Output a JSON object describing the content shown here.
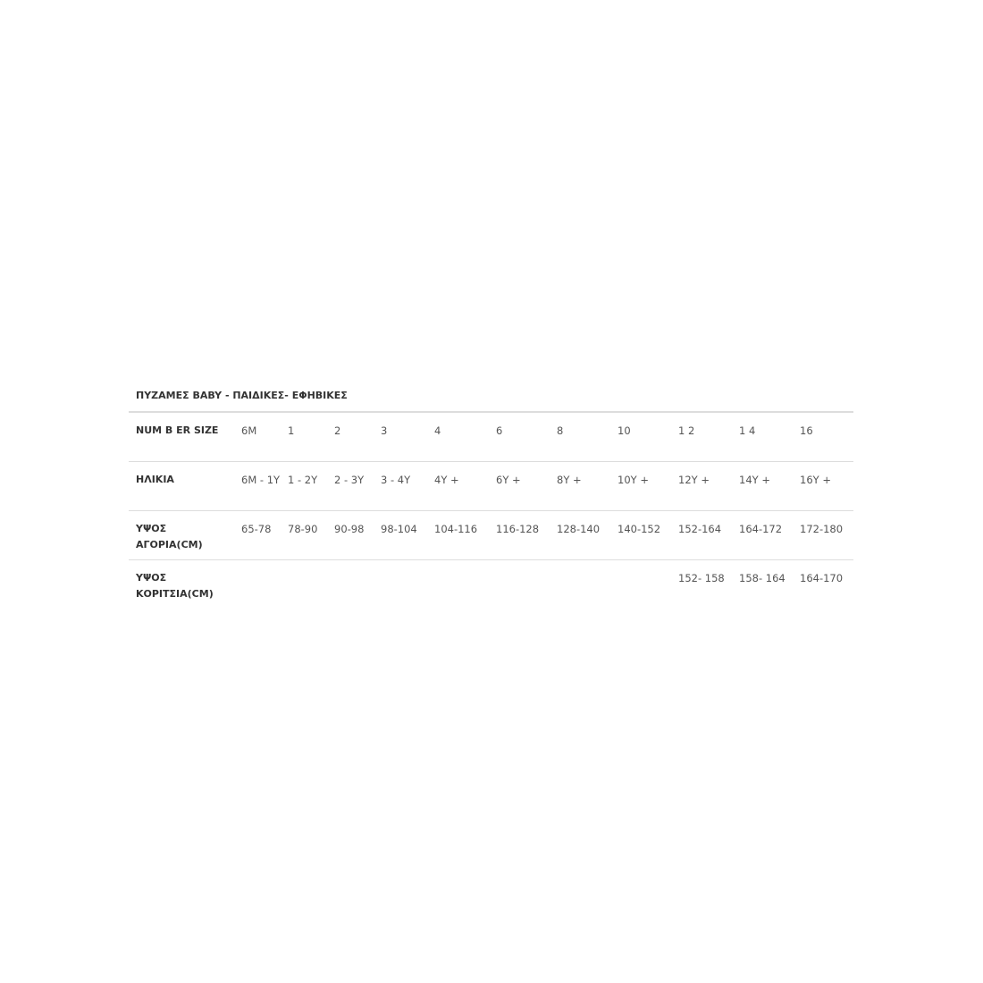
{
  "title": "ΠΥΖΑΜΕΣ BABY - ΠΑΙΔΙΚΕΣ- ΕΦΗΒΙΚΕΣ",
  "rows": [
    {
      "label": "NUM B ER SIZE",
      "cells": [
        "6M",
        "1",
        "2",
        "3",
        "4",
        "6",
        "8",
        "10",
        "1 2",
        "1 4",
        "16"
      ]
    },
    {
      "label": "ΗΛΙΚΙΑ",
      "cells": [
        "6M - 1Y",
        "1 - 2Y",
        "2 - 3Y",
        "3 - 4Y",
        "4Y +",
        "6Y +",
        "8Y +",
        "10Y +",
        "12Y +",
        "14Y +",
        "16Y +"
      ]
    },
    {
      "label": "ΥΨΟΣ ΑΓΟΡΙΑ(CM)",
      "cells": [
        "65-78",
        "78-90",
        "90-98",
        "98-104",
        "104-116",
        "116-128",
        "128-140",
        "140-152",
        "152-164",
        "164-172",
        "172-180"
      ]
    },
    {
      "label": "ΥΨΟΣ ΚΟΡΙΤΣΙΑ(CM)",
      "cells": [
        "",
        "",
        "",
        "",
        "",
        "",
        "",
        "",
        "152- 158",
        "158- 164",
        "164-170"
      ]
    }
  ]
}
